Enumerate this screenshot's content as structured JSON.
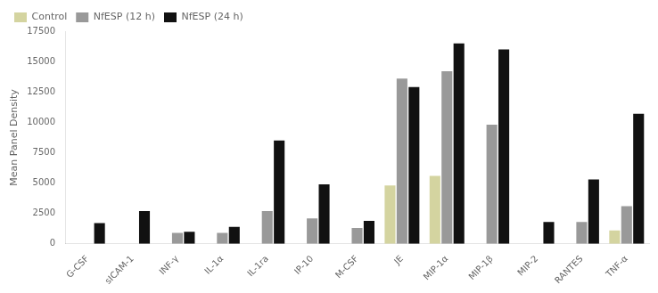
{
  "chart_data": {
    "type": "bar",
    "categories": [
      "G-CSF",
      "sICAM-1",
      "INF-γ",
      "IL-1α",
      "IL-1ra",
      "IP-10",
      "M-CSF",
      "JE",
      "MIP-1α",
      "MIP-1β",
      "MIP-2",
      "RANTES",
      "TNF-α"
    ],
    "series": [
      {
        "name": "Control",
        "color": "#d4d4a0",
        "values": [
          0,
          0,
          0,
          0,
          0,
          0,
          0,
          4800,
          5600,
          0,
          0,
          0,
          1100
        ]
      },
      {
        "name": "NfESP (12 h)",
        "color": "#999999",
        "values": [
          0,
          0,
          900,
          900,
          2700,
          2100,
          1300,
          13600,
          14200,
          9800,
          0,
          1800,
          3100
        ]
      },
      {
        "name": "NfESP (24 h)",
        "color": "#111111",
        "values": [
          1700,
          2700,
          1000,
          1400,
          8500,
          4900,
          1900,
          12900,
          16500,
          16000,
          1800,
          5300,
          10700
        ]
      }
    ],
    "ylabel": "Mean Panel Density",
    "ylim": [
      0,
      17500
    ],
    "yticks": [
      0,
      2500,
      5000,
      7500,
      10000,
      12500,
      15000,
      17500
    ],
    "grid": false,
    "legend": "upper left"
  }
}
